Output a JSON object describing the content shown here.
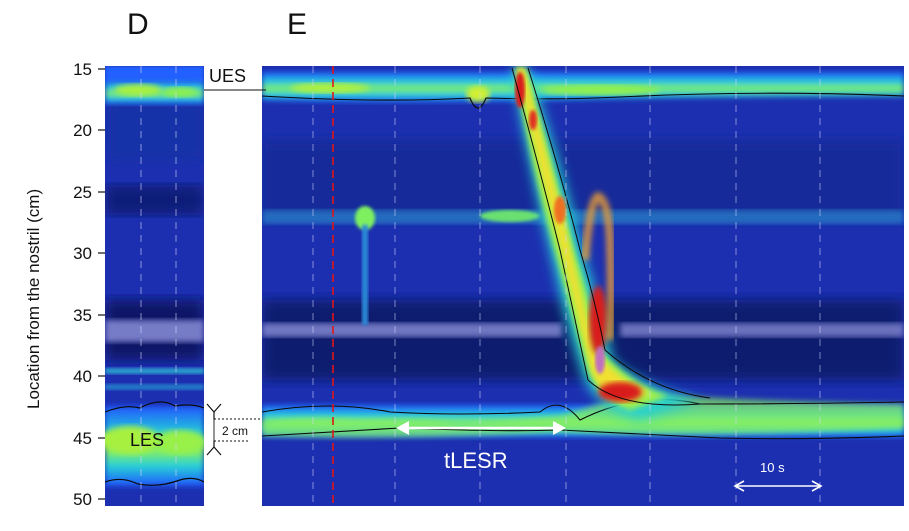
{
  "panels": {
    "left": {
      "letter": "D"
    },
    "right": {
      "letter": "E"
    }
  },
  "y_axis": {
    "label": "Location from the nostril (cm)",
    "ticks": [
      "15",
      "20",
      "25",
      "30",
      "35",
      "40",
      "45",
      "50"
    ],
    "range": [
      15,
      50
    ]
  },
  "annotations": {
    "ues": "UES",
    "les": "LES",
    "span": "2 cm",
    "tlesr": "tLESR",
    "scale": "10 s"
  },
  "colors": {
    "background_field": "#1c2fb0",
    "dark_band": "#0b135c",
    "contour_line": "#0a0a0a",
    "marker_line": "#e01616",
    "arrow": "#ffffff"
  }
}
